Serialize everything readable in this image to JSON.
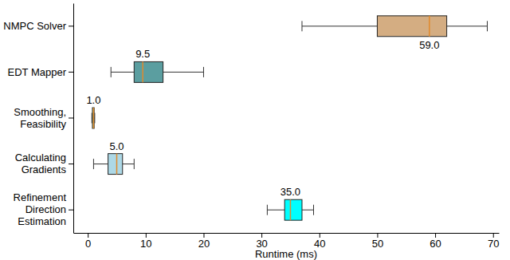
{
  "chart_data": {
    "type": "box",
    "orientation": "horizontal",
    "x_label": "Runtime (ms)",
    "categories": [
      "NMPC Solver",
      "EDT Mapper",
      "Smoothing,\nFeasibility",
      "Calculating\nGradients",
      "Refinement\nDirection\nEstimation"
    ],
    "values": [
      59.0,
      9.5,
      1.0,
      5.0,
      35.0
    ],
    "value_labels": [
      "59.0",
      "9.5",
      "1.0",
      "5.0",
      "35.0"
    ],
    "q1": [
      50,
      8,
      0.8,
      3.5,
      34
    ],
    "q3": [
      62,
      13,
      1.1,
      6,
      37
    ],
    "whisker_low": [
      37,
      4,
      0.7,
      1,
      31
    ],
    "whisker_high": [
      69,
      20,
      1.2,
      8,
      39
    ],
    "colors": [
      "#d4ad82",
      "#5b9ea0",
      "#8fbf8f",
      "#add8e6",
      "#00ffff"
    ],
    "data_labels": true,
    "grid": false,
    "xlim": [
      -2.5,
      71
    ],
    "xticks": [
      0,
      10,
      20,
      30,
      40,
      50,
      60,
      70
    ]
  }
}
